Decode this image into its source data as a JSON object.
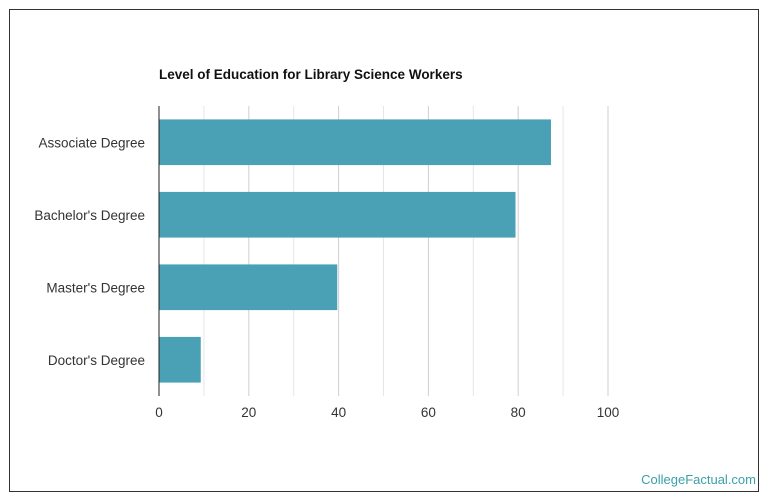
{
  "chart_data": {
    "type": "bar",
    "orientation": "horizontal",
    "title": "Level of Education for Library Science Workers",
    "xlabel": "",
    "ylabel": "",
    "categories": [
      "Associate Degree",
      "Bachelor's Degree",
      "Master's Degree",
      "Doctor's Degree"
    ],
    "values": [
      87.3,
      79.4,
      39.7,
      9.3
    ],
    "xlim": [
      0,
      100
    ],
    "xticks": [
      0,
      20,
      40,
      60,
      80,
      100
    ],
    "grid": true,
    "legend": "none",
    "bar_color": "#4aa0b5"
  },
  "credit": "CollegeFactual.com"
}
